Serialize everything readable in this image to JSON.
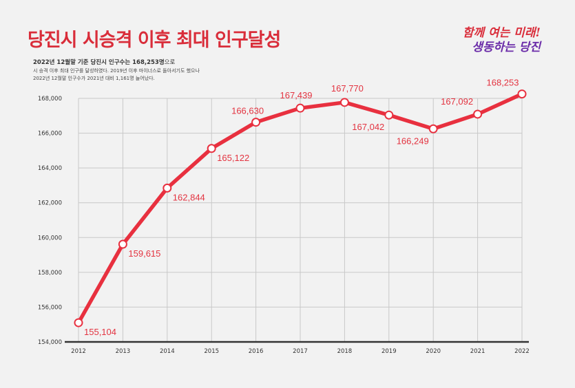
{
  "header": {
    "title": "당진시 시승격 이후 최대 인구달성",
    "desc_line1_bold": "2022년 12월말 기준 당진시 인구수는 168,253명",
    "desc_line1_tail": "으로",
    "desc_line2": "시 승격 이후 최대 인구를 달성하였다. 2019년 이후 마이너스로 돌아서기도 했으나",
    "desc_line3": "2022년 12월말 인구수가 2021년 대비 1,161명 늘어났다.",
    "slogan_line1": "함께 여는 미래!",
    "slogan_line2": "생동하는 당진"
  },
  "colors": {
    "title": "#d92d3a",
    "line": "#e8303f",
    "label": "#e33340",
    "grid": "#c8c8c8",
    "axis": "#333333",
    "slogan_purple": "#6a2ba8"
  },
  "chart_data": {
    "type": "line",
    "x": [
      "2012",
      "2013",
      "2014",
      "2015",
      "2016",
      "2017",
      "2018",
      "2019",
      "2020",
      "2021",
      "2022"
    ],
    "series": [
      {
        "values": [
          155104,
          159615,
          162844,
          165122,
          166630,
          167439,
          167770,
          167042,
          166249,
          167092,
          168253
        ]
      }
    ],
    "data_labels": [
      "155,104",
      "159,615",
      "162,844",
      "165,122",
      "166,630",
      "167,439",
      "167,770",
      "167,042",
      "166,249",
      "167,092",
      "168,253"
    ],
    "ylim": [
      154000,
      168000
    ],
    "yticks": [
      154000,
      156000,
      158000,
      160000,
      162000,
      164000,
      166000,
      168000
    ],
    "ytick_labels": [
      "154,000",
      "156,000",
      "158,000",
      "160,000",
      "162,000",
      "164,000",
      "166,000",
      "168,000"
    ],
    "grid": true
  }
}
